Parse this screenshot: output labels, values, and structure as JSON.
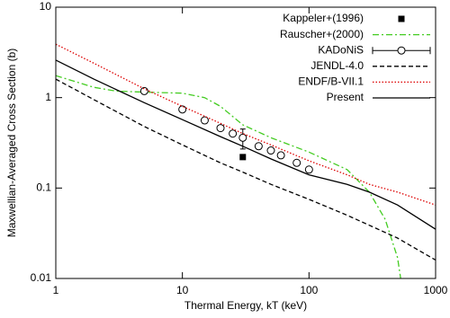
{
  "chart_data": {
    "type": "line",
    "xlabel": "Thermal Energy, kT (keV)",
    "ylabel": "Maxwellian-Averaged Cross Section (b)",
    "xlog": true,
    "ylog": true,
    "xlim": [
      1,
      1000
    ],
    "ylim": [
      0.01,
      10
    ],
    "xticks": [
      1,
      10,
      100,
      1000
    ],
    "yticks": [
      0.01,
      0.1,
      1,
      10
    ],
    "legend": "upper right",
    "series": [
      {
        "name": "Kappeler+(1996)",
        "style": "points",
        "marker": "square",
        "color": "#000000",
        "x": [
          30
        ],
        "values": [
          0.22
        ]
      },
      {
        "name": "Rauscher+(2000)",
        "style": "line",
        "dash": "dash-dot",
        "color": "#44cc22",
        "x": [
          1,
          2,
          3,
          5,
          10,
          15,
          20,
          30,
          50,
          100,
          200,
          300,
          400,
          500,
          530
        ],
        "values": [
          1.75,
          1.3,
          1.18,
          1.15,
          1.12,
          1.0,
          0.8,
          0.5,
          0.36,
          0.25,
          0.16,
          0.09,
          0.045,
          0.017,
          0.01
        ]
      },
      {
        "name": "KADoNiS",
        "style": "errorpoints",
        "marker": "circle",
        "color": "#000000",
        "x": [
          5,
          10,
          15,
          20,
          25,
          30,
          40,
          50,
          60,
          80,
          100
        ],
        "values": [
          1.18,
          0.74,
          0.56,
          0.46,
          0.4,
          0.36,
          0.29,
          0.26,
          0.23,
          0.19,
          0.16
        ],
        "errors": [
          0.03,
          0.02,
          0.015,
          0.012,
          0.01,
          0.09,
          0.008,
          0.007,
          0.006,
          0.005,
          0.004
        ]
      },
      {
        "name": "JENDL-4.0",
        "style": "line",
        "dash": "dashed",
        "color": "#000000",
        "x": [
          1,
          2,
          5,
          10,
          20,
          30,
          50,
          100,
          200,
          500,
          1000
        ],
        "values": [
          1.6,
          0.95,
          0.48,
          0.3,
          0.19,
          0.15,
          0.11,
          0.075,
          0.05,
          0.028,
          0.016
        ]
      },
      {
        "name": "ENDF/B-VII.1",
        "style": "line",
        "dash": "dotted",
        "color": "#dd0000",
        "x": [
          1,
          2,
          5,
          10,
          20,
          30,
          50,
          100,
          200,
          300,
          500,
          1000
        ],
        "values": [
          3.9,
          2.4,
          1.25,
          0.8,
          0.52,
          0.4,
          0.3,
          0.2,
          0.14,
          0.11,
          0.09,
          0.065
        ]
      },
      {
        "name": "Present",
        "style": "line",
        "dash": "solid",
        "color": "#000000",
        "x": [
          1,
          2,
          5,
          10,
          20,
          30,
          50,
          100,
          200,
          300,
          500,
          1000
        ],
        "values": [
          2.6,
          1.6,
          0.88,
          0.57,
          0.37,
          0.29,
          0.21,
          0.14,
          0.11,
          0.09,
          0.065,
          0.035
        ]
      }
    ]
  }
}
